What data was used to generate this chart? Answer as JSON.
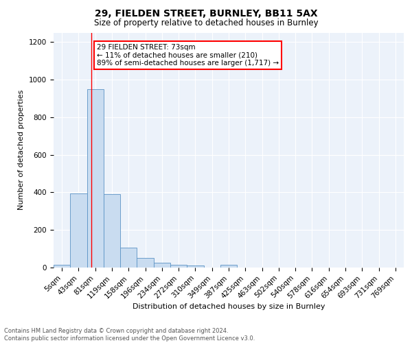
{
  "title1": "29, FIELDEN STREET, BURNLEY, BB11 5AX",
  "title2": "Size of property relative to detached houses in Burnley",
  "xlabel": "Distribution of detached houses by size in Burnley",
  "ylabel": "Number of detached properties",
  "categories": [
    "5sqm",
    "43sqm",
    "81sqm",
    "119sqm",
    "158sqm",
    "196sqm",
    "234sqm",
    "272sqm",
    "310sqm",
    "349sqm",
    "387sqm",
    "425sqm",
    "463sqm",
    "502sqm",
    "540sqm",
    "578sqm",
    "616sqm",
    "654sqm",
    "693sqm",
    "731sqm",
    "769sqm"
  ],
  "values": [
    15,
    395,
    950,
    390,
    105,
    52,
    25,
    15,
    12,
    0,
    15,
    0,
    0,
    0,
    0,
    0,
    0,
    0,
    0,
    0,
    0
  ],
  "bar_color": "#c9dcf0",
  "bar_edge_color": "#5b93c5",
  "red_line_x": 1.78,
  "annotation_text": "29 FIELDEN STREET: 73sqm\n← 11% of detached houses are smaller (210)\n89% of semi-detached houses are larger (1,717) →",
  "annotation_box_color": "white",
  "annotation_box_edge_color": "red",
  "footer_text": "Contains HM Land Registry data © Crown copyright and database right 2024.\nContains public sector information licensed under the Open Government Licence v3.0.",
  "ylim": [
    0,
    1250
  ],
  "yticks": [
    0,
    200,
    400,
    600,
    800,
    1000,
    1200
  ],
  "background_color": "#ecf2fa",
  "grid_color": "white",
  "title1_fontsize": 10,
  "title2_fontsize": 8.5,
  "xlabel_fontsize": 8,
  "ylabel_fontsize": 8,
  "tick_fontsize": 7.5,
  "annotation_fontsize": 7.5,
  "footer_fontsize": 6
}
